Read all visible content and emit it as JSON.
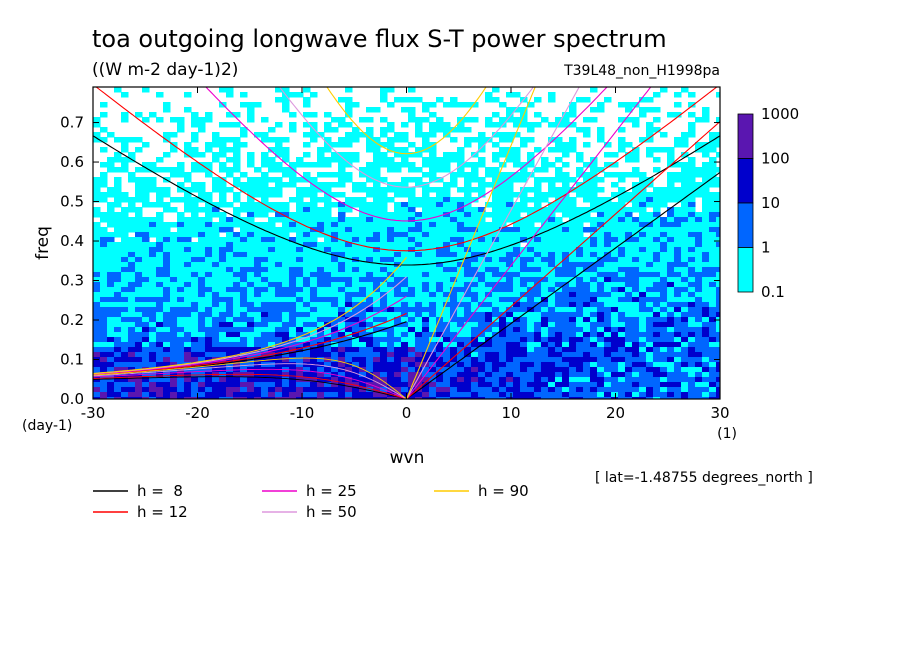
{
  "chart_data": {
    "type": "heatmap",
    "title": "toa outgoing longwave flux S-T power spectrum",
    "subtitle": "((W m-2 day-1)2)",
    "experiment": "T39L48_non_H1998pa",
    "xlabel": "wvn",
    "ylabel": "freq",
    "x_unit": "(1)",
    "y_unit": "(day-1)",
    "xlim": [
      -30,
      30
    ],
    "ylim": [
      0,
      0.79
    ],
    "x_ticks": [
      -30,
      -20,
      -10,
      0,
      10,
      20,
      30
    ],
    "x_tick_labels": [
      "-30",
      "-20",
      "-10",
      "0",
      "10",
      "20",
      "30"
    ],
    "y_ticks": [
      0.0,
      0.1,
      0.2,
      0.3,
      0.4,
      0.5,
      0.6,
      0.7
    ],
    "y_tick_labels": [
      "0.0",
      "0.1",
      "0.2",
      "0.3",
      "0.4",
      "0.5",
      "0.6",
      "0.7"
    ],
    "latitude_note": "[ lat=-1.48755 degrees_north ]",
    "colorbar": {
      "labels": [
        "1000",
        "100",
        "10",
        "1",
        "0.1"
      ],
      "levels": [
        0.1,
        1,
        10,
        100,
        1000
      ],
      "colors": [
        "#00ffff",
        "#0066ff",
        "#0000cc",
        "#5a16b0"
      ]
    },
    "background_color": "#ffffff",
    "dispersion_curves": [
      {
        "label": "h =  8",
        "h": 8,
        "color": "#000000"
      },
      {
        "label": "h = 12",
        "h": 12,
        "color": "#ff0000"
      },
      {
        "label": "h = 25",
        "h": 25,
        "color": "#ee00cc"
      },
      {
        "label": "h = 50",
        "h": 50,
        "color": "#dd99dd"
      },
      {
        "label": "h = 90",
        "h": 90,
        "color": "#ffcc00"
      }
    ]
  }
}
